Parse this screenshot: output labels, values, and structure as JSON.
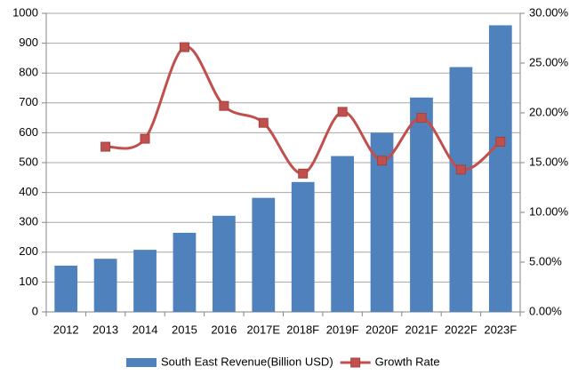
{
  "chart_data": {
    "type": "bar-line",
    "categories": [
      "2012",
      "2013",
      "2014",
      "2015",
      "2016",
      "2017E",
      "2018F",
      "2019F",
      "2020F",
      "2021F",
      "2022F",
      "2023F"
    ],
    "series": [
      {
        "name": "South East Revenue(Billion USD)",
        "type": "bar",
        "color": "#4f81bd",
        "values": [
          155,
          178,
          208,
          265,
          322,
          382,
          435,
          522,
          600,
          718,
          820,
          960
        ]
      },
      {
        "name": "Growth Rate",
        "type": "line",
        "axis": "y2",
        "color": "#c0504d",
        "smooth": true,
        "values": [
          null,
          16.6,
          17.4,
          26.6,
          20.7,
          19.0,
          13.9,
          20.1,
          15.2,
          19.5,
          14.3,
          17.1
        ]
      }
    ],
    "ylim": [
      0,
      1000
    ],
    "yticks": [
      0,
      100,
      200,
      300,
      400,
      500,
      600,
      700,
      800,
      900,
      1000
    ],
    "y2lim": [
      0,
      30
    ],
    "y2ticks": [
      {
        "value": 0,
        "label": "0.00%"
      },
      {
        "value": 5,
        "label": "5.00%"
      },
      {
        "value": 10,
        "label": "10.00%"
      },
      {
        "value": 15,
        "label": "15.00%"
      },
      {
        "value": 20,
        "label": "20.00%"
      },
      {
        "value": 25,
        "label": "25.00%"
      },
      {
        "value": 30,
        "label": "30.00%"
      }
    ],
    "grid": true,
    "legend": "bottom"
  }
}
